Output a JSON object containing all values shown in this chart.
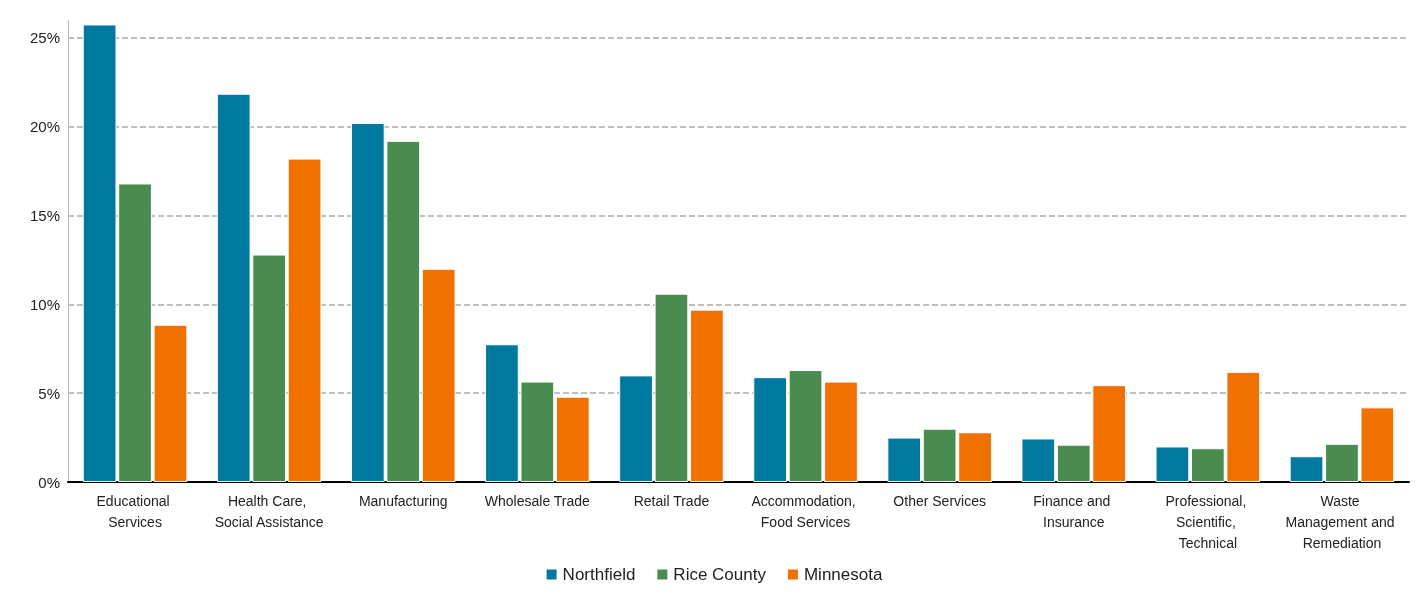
{
  "chart_data": {
    "type": "bar",
    "categories": [
      "Educational Services",
      "Health Care, Social Assistance",
      "Manufacturing",
      "Wholesale Trade",
      "Retail Trade",
      "Accommodation, Food Services",
      "Other Services",
      "Finance and Insurance",
      "Professional, Scientific, Technical",
      "Waste Management and Remediation"
    ],
    "series": [
      {
        "name": "Northfield",
        "color": "#0079a1",
        "values": [
          25.75,
          21.85,
          20.2,
          7.75,
          6.0,
          5.9,
          2.5,
          2.45,
          2.0,
          1.45
        ]
      },
      {
        "name": "Rice County",
        "color": "#4a8c50",
        "values": [
          16.8,
          12.8,
          19.2,
          5.65,
          10.6,
          6.3,
          3.0,
          2.1,
          1.9,
          2.15
        ]
      },
      {
        "name": "Minnesota",
        "color": "#f07100",
        "values": [
          8.85,
          18.2,
          12.0,
          4.8,
          9.7,
          5.65,
          2.8,
          5.45,
          6.2,
          4.2
        ]
      }
    ],
    "ylim": [
      0,
      26
    ],
    "yticks": [
      {
        "value": 0,
        "label": "0%"
      },
      {
        "value": 5,
        "label": "5%"
      },
      {
        "value": 10,
        "label": "10%"
      },
      {
        "value": 15,
        "label": "15%"
      },
      {
        "value": 20,
        "label": "20%"
      },
      {
        "value": 25,
        "label": "25%"
      }
    ],
    "grid": "y",
    "legend": "bottom"
  }
}
